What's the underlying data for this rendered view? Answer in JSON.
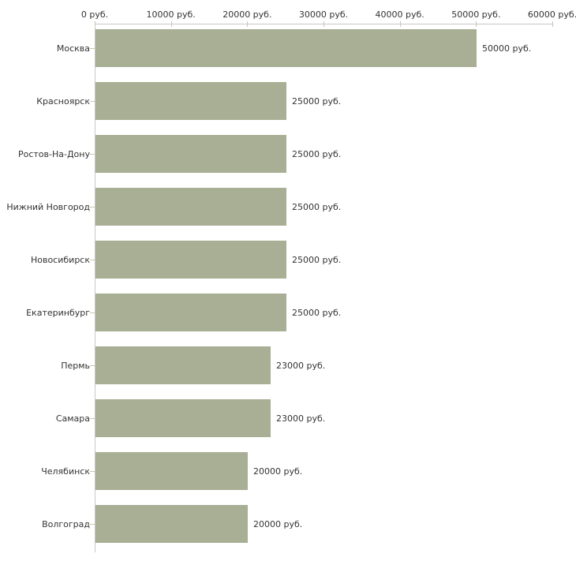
{
  "chart_data": {
    "type": "bar",
    "orientation": "horizontal",
    "title": "",
    "xlabel": "",
    "ylabel": "",
    "unit": "руб.",
    "categories": [
      "Москва",
      "Красноярск",
      "Ростов-На-Дону",
      "Нижний Новгород",
      "Новосибирск",
      "Екатеринбург",
      "Пермь",
      "Самара",
      "Челябинск",
      "Волгоград"
    ],
    "values": [
      50000,
      25000,
      25000,
      25000,
      25000,
      25000,
      23000,
      23000,
      20000,
      20000
    ],
    "value_labels": [
      "50000 руб.",
      "25000 руб.",
      "25000 руб.",
      "25000 руб.",
      "25000 руб.",
      "25000 руб.",
      "23000 руб.",
      "23000 руб.",
      "20000 руб.",
      "20000 руб."
    ],
    "x_ticks": {
      "values": [
        0,
        10000,
        20000,
        30000,
        40000,
        50000,
        60000
      ],
      "labels": [
        "0 руб.",
        "10000 руб.",
        "20000 руб.",
        "30000 руб.",
        "40000 руб.",
        "50000 руб.",
        "60000 руб."
      ]
    },
    "xlim": [
      0,
      60000
    ],
    "grid": false,
    "legend": null,
    "colors": {
      "bar": "#a8af94",
      "axis_line": "#c8c8c8",
      "tick_mark": "#c8c8a8",
      "text": "#333333",
      "background": "#ffffff"
    }
  }
}
